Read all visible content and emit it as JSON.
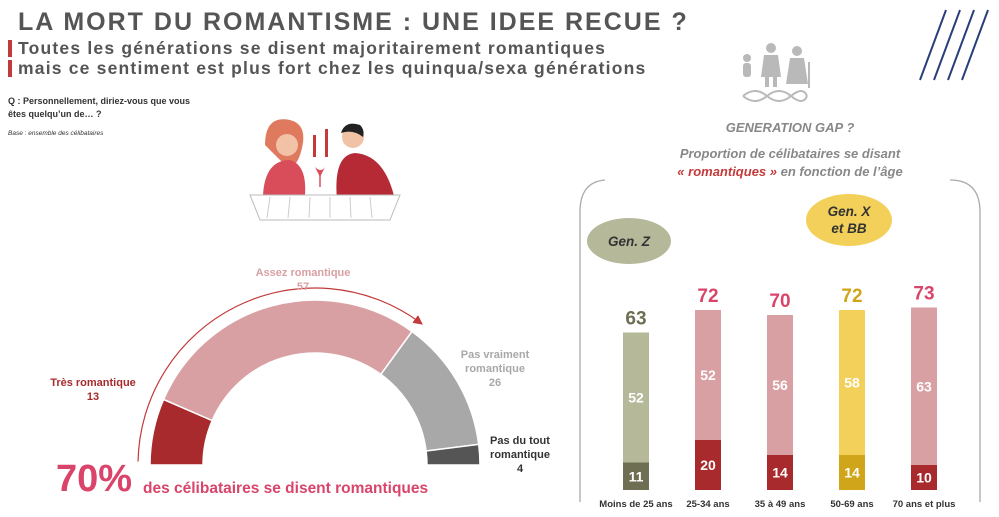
{
  "header": {
    "title": "LA MORT DU ROMANTISME : UNE IDEE RECUE ?",
    "subtitle_line1": "Toutes les générations se disent majoritairement romantiques",
    "subtitle_line2": "mais ce sentiment est plus fort chez les quinqua/sexa générations"
  },
  "question": "Q : Personnellement, diriez-vous que vous êtes quelqu’un de… ?",
  "base": "Base : ensemble des célibataires",
  "kpi": {
    "value": "70%",
    "text": "des célibataires se disent romantiques"
  },
  "right_panel": {
    "heading": "GENERATION GAP ?",
    "line1": "Proportion de célibataires se disant",
    "line2_highlight": "« romantiques »",
    "line2_rest": " en fonction de l’âge",
    "bubble_z": "Gen. Z",
    "bubble_x_line1": "Gen. X",
    "bubble_x_line2": "et BB"
  },
  "colors": {
    "tres": "#a82a2c",
    "assez": "#d9a0a3",
    "pas_vraiment": "#a8a8a8",
    "pas_du_tout": "#555555",
    "genz_total": "#6e6e52",
    "genz_light": "#b5b99a",
    "genz_dark": "#6e6e52",
    "genx_total": "#d1a51a",
    "genx_light": "#f2d05a",
    "genx_dark": "#d1a51a",
    "other_total": "#d9456a",
    "other_light": "#d9a0a3",
    "other_dark": "#a82a2c"
  },
  "chart_data": [
    {
      "type": "pie",
      "subtype": "half-donut",
      "slices": [
        {
          "label": "Très romantique",
          "value": 13,
          "color": "#a82a2c"
        },
        {
          "label": "Assez romantique",
          "value": 57,
          "color": "#d9a0a3"
        },
        {
          "label": "Pas vraiment romantique",
          "value": 26,
          "color": "#a8a8a8"
        },
        {
          "label": "Pas du tout romantique",
          "value": 4,
          "color": "#555555"
        }
      ]
    },
    {
      "type": "bar",
      "stacked": true,
      "categories": [
        "Moins de 25 ans",
        "25-34 ans",
        "35 à 49 ans",
        "50-69 ans",
        "70 ans et plus"
      ],
      "totals": [
        63,
        72,
        70,
        72,
        73
      ],
      "series": [
        {
          "name": "Très romantique",
          "values": [
            11,
            20,
            14,
            14,
            10
          ]
        },
        {
          "name": "Assez romantique",
          "values": [
            52,
            52,
            56,
            58,
            63
          ]
        }
      ],
      "ylim": [
        0,
        100
      ]
    }
  ]
}
